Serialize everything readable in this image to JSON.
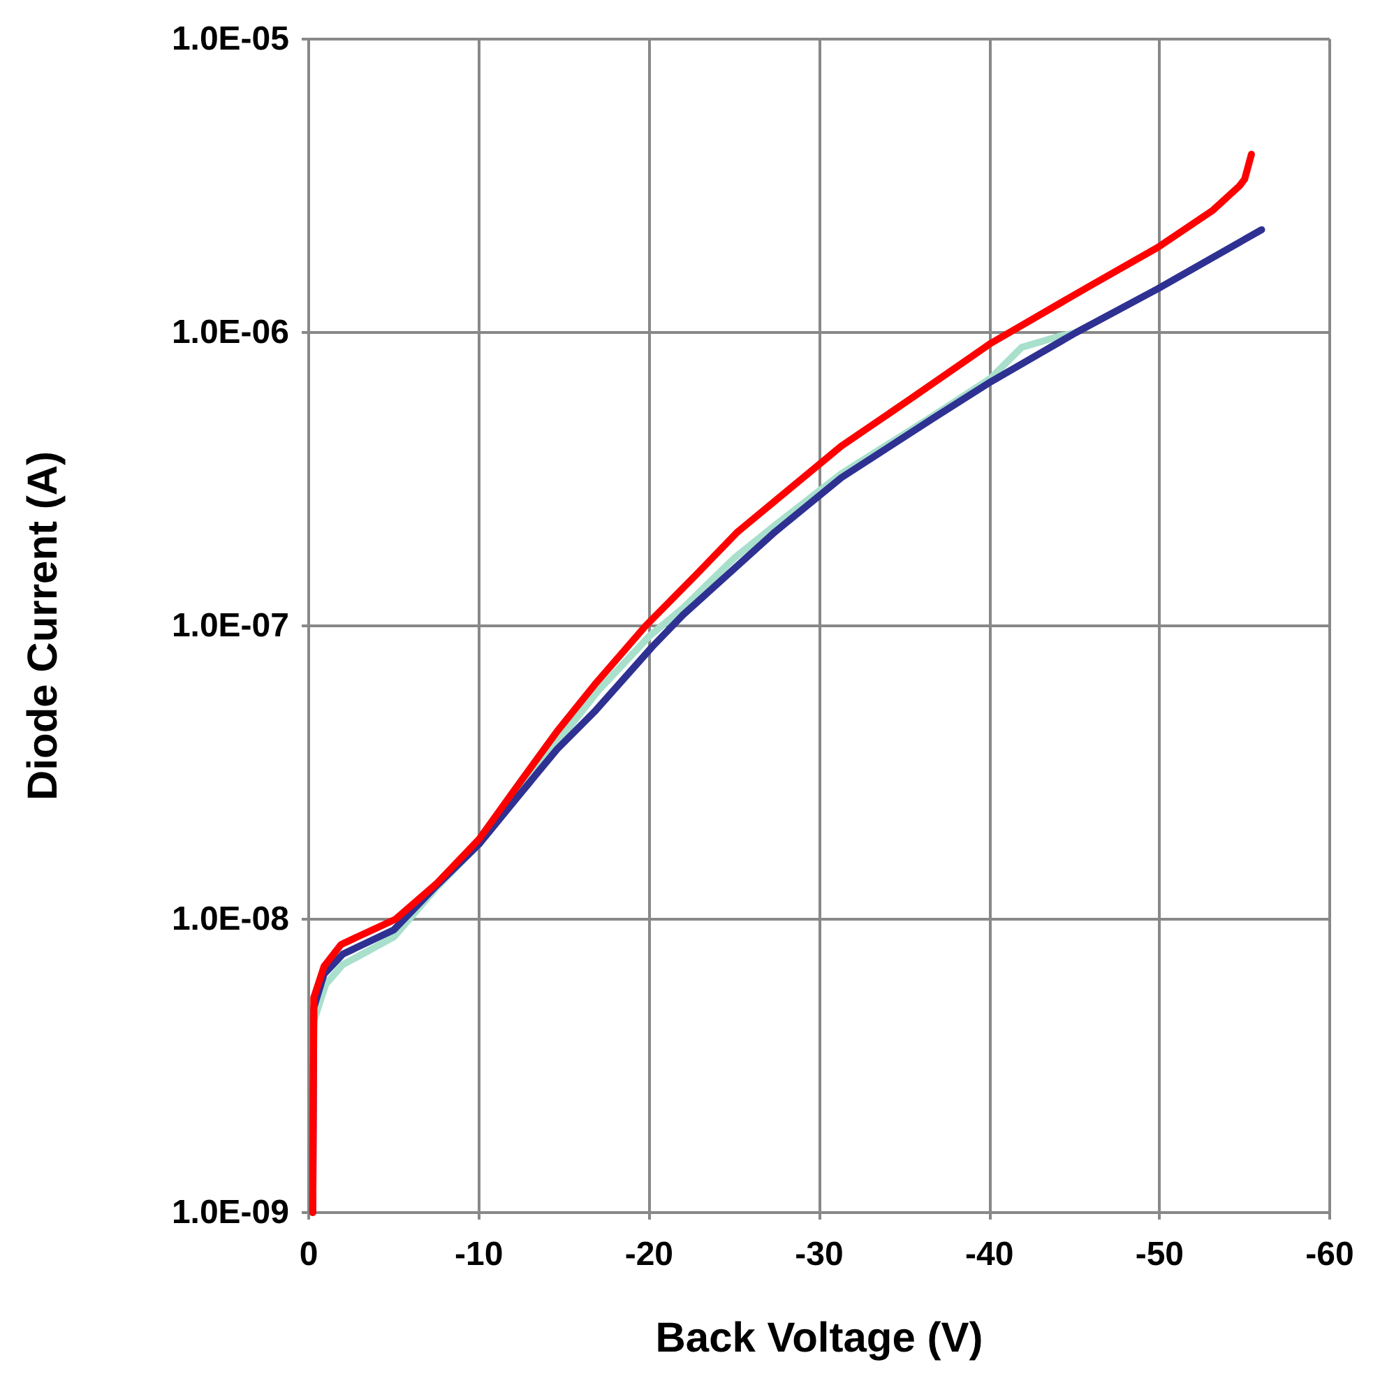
{
  "chart_data": {
    "type": "line",
    "xlabel": "Back Voltage (V)",
    "ylabel": "Diode Current (A)",
    "log": "y",
    "grid": true,
    "marker": "none",
    "line_style": "solid",
    "xlim": [
      0,
      -60
    ],
    "xticks": [
      0,
      -10,
      -20,
      -30,
      -40,
      -50,
      -60
    ],
    "ylim": [
      1e-09,
      1e-05
    ],
    "yticks": [
      {
        "value": 1e-09,
        "label": "1.0E-09"
      },
      {
        "value": 1e-08,
        "label": "1.0E-08"
      },
      {
        "value": 1e-07,
        "label": "1.0E-07"
      },
      {
        "value": 1e-06,
        "label": "1.0E-06"
      },
      {
        "value": 1e-05,
        "label": "1.0E-05"
      }
    ],
    "series": [
      {
        "color": "#a8e0cc",
        "x": [
          -0.3,
          -1,
          -2,
          -5,
          -7.5,
          -10,
          -12.25,
          -14.6,
          -17,
          -20,
          -22,
          -25,
          -27.4,
          -31.3,
          -36.7,
          -40.1,
          -41.9,
          -44.1,
          -45.1
        ],
        "values": [
          4.5e-09,
          6e-09,
          7e-09,
          8.7e-09,
          1.28e-08,
          1.8e-08,
          2.7e-08,
          4e-08,
          6e-08,
          9.2e-08,
          1.15e-07,
          1.7e-07,
          2.2e-07,
          3.3e-07,
          5.2e-07,
          7e-07,
          8.9e-07,
          9.7e-07,
          1e-06
        ]
      },
      {
        "color": "#2e3192",
        "x": [
          -0.24,
          -0.3,
          -0.9,
          -2,
          -5,
          -7.5,
          -10,
          -12.25,
          -14.6,
          -16.8,
          -20.2,
          -22,
          -27.4,
          -31.3,
          -36.7,
          -40.1,
          -45.1,
          -49.9,
          -56
        ],
        "values": [
          1e-09,
          5e-09,
          6.5e-09,
          7.6e-09,
          9.2e-09,
          1.3e-08,
          1.8e-08,
          2.6e-08,
          3.8e-08,
          5.1e-08,
          8.5e-08,
          1.09e-07,
          2.09e-07,
          3.2e-07,
          5.1e-07,
          6.8e-07,
          1e-06,
          1.41e-06,
          2.24e-06
        ]
      },
      {
        "color": "#ff0000",
        "x": [
          -0.24,
          -0.3,
          -0.9,
          -1.9,
          -5.1,
          -7.5,
          -10,
          -12.25,
          -14.6,
          -16.8,
          -19.8,
          -22.6,
          -25.2,
          -31.3,
          -35.3,
          -40.1,
          -45.9,
          -49.9,
          -53.1,
          -54.7,
          -55,
          -55.4
        ],
        "values": [
          1e-09,
          5.4e-09,
          6.9e-09,
          8.2e-09,
          1e-08,
          1.32e-08,
          1.87e-08,
          2.84e-08,
          4.37e-08,
          6.3e-08,
          1e-07,
          1.46e-07,
          2.09e-07,
          4.1e-07,
          5.9e-07,
          9.2e-07,
          1.44e-06,
          1.95e-06,
          2.6e-06,
          3.16e-06,
          3.33e-06,
          4.05e-06
        ]
      }
    ]
  }
}
